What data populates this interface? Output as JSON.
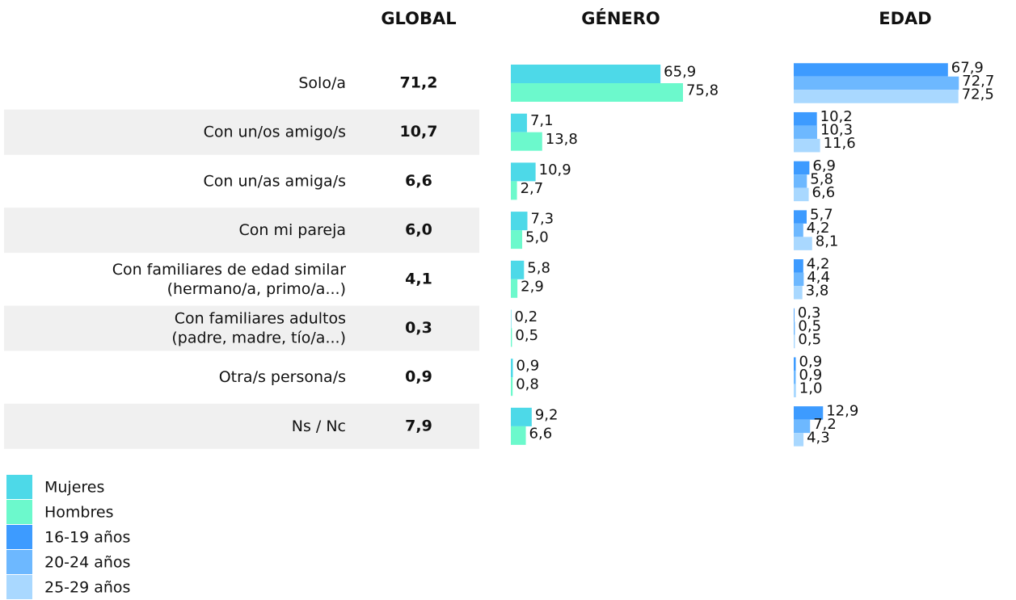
{
  "table": {
    "header": "GLOBAL",
    "categories": [
      [
        "Solo/a"
      ],
      [
        "Con un/os amigo/s"
      ],
      [
        "Con un/as amiga/s"
      ],
      [
        "Con mi pareja"
      ],
      [
        "Con familiares de edad similar",
        "(hermano/a, primo/a...)"
      ],
      [
        "Con familiares adultos",
        "(padre, madre, tío/a...)"
      ],
      [
        "Otra/s persona/s"
      ],
      [
        "Ns / Nc"
      ]
    ],
    "values": [
      71.2,
      10.7,
      6.6,
      6.0,
      4.1,
      0.3,
      0.9,
      7.9
    ],
    "value_labels": [
      "71,2",
      "10,7",
      "6,6",
      "6,0",
      "4,1",
      "0,3",
      "0,9",
      "7,9"
    ]
  },
  "chart_data": [
    {
      "type": "bar",
      "orientation": "horizontal",
      "title": "GÉNERO",
      "series": [
        {
          "name": "Mujeres",
          "color": "#4dd9e8",
          "values": [
            65.9,
            7.1,
            10.9,
            7.3,
            5.8,
            0.2,
            0.9,
            9.2
          ],
          "value_labels": [
            "65,9",
            "7,1",
            "10,9",
            "7,3",
            "5,8",
            "0,2",
            "0,9",
            "9,2"
          ]
        },
        {
          "name": "Hombres",
          "color": "#6cf9cc",
          "values": [
            75.8,
            13.8,
            2.7,
            5.0,
            2.9,
            0.5,
            0.8,
            6.6
          ],
          "value_labels": [
            "75,8",
            "13,8",
            "2,7",
            "5,0",
            "2,9",
            "0,5",
            "0,8",
            "6,6"
          ]
        }
      ]
    },
    {
      "type": "bar",
      "orientation": "horizontal",
      "title": "EDAD",
      "series": [
        {
          "name": "16-19 años",
          "color": "#3d9bff",
          "values": [
            67.9,
            10.2,
            6.9,
            5.7,
            4.2,
            0.3,
            0.9,
            12.9
          ],
          "value_labels": [
            "67,9",
            "10,2",
            "6,9",
            "5,7",
            "4,2",
            "0,3",
            "0,9",
            "12,9"
          ]
        },
        {
          "name": "20-24 años",
          "color": "#6db8ff",
          "values": [
            72.7,
            10.3,
            5.8,
            4.2,
            4.4,
            0.5,
            0.9,
            7.2
          ],
          "value_labels": [
            "72,7",
            "10,3",
            "5,8",
            "4,2",
            "4,4",
            "0,5",
            "0,9",
            "7,2"
          ]
        },
        {
          "name": "25-29 años",
          "color": "#a9d8ff",
          "values": [
            72.5,
            11.6,
            6.6,
            8.1,
            3.8,
            0.5,
            1.0,
            4.3
          ],
          "value_labels": [
            "72,5",
            "11,6",
            "6,6",
            "8,1",
            "3,8",
            "0,5",
            "1,0",
            "4,3"
          ]
        }
      ]
    }
  ]
}
